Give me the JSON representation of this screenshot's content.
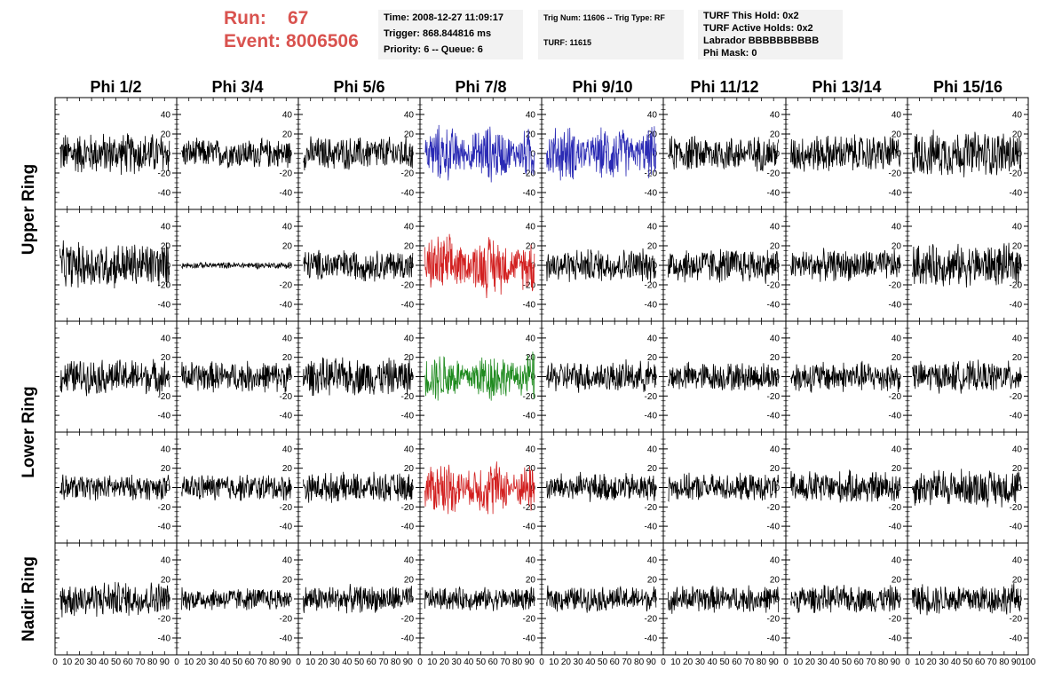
{
  "run_label": "Run:",
  "run_value": "67",
  "event_label": "Event:",
  "event_value": "8006506",
  "info_time": "Time: 2008-12-27 11:09:17",
  "info_trigger": "Trigger: 868.844816 ms",
  "info_priority": "Priority: 6 -- Queue: 6",
  "info_trignum": "Trig Num: 11606 -- Trig Type: RF",
  "info_turf": "TURF: 11615",
  "info_turf_hold": "TURF This Hold: 0x2",
  "info_turf_active": "TURF Active Holds: 0x2",
  "info_labrador": "Labrador BBBBBBBBBB",
  "info_phimask": "Phi Mask: 0",
  "colors": {
    "accent_red": "#d9534f",
    "trace_default": "#000000",
    "trace_blue": "#2a2ab4",
    "trace_red": "#d22020",
    "trace_green": "#1e8a1e"
  },
  "chart_data": {
    "type": "line",
    "columns": [
      "Phi 1/2",
      "Phi 3/4",
      "Phi 5/6",
      "Phi 7/8",
      "Phi 9/10",
      "Phi 11/12",
      "Phi 13/14",
      "Phi 15/16"
    ],
    "ring_labels": [
      "Upper Ring",
      "Lower Ring",
      "Nadir Ring"
    ],
    "xlim": [
      0,
      100
    ],
    "ylim": [
      -50,
      50
    ],
    "yticks": [
      -40,
      -20,
      0,
      20,
      40
    ],
    "xticks": [
      0,
      10,
      20,
      30,
      40,
      50,
      60,
      70,
      80,
      90,
      100
    ],
    "xtick_labels": [
      "0",
      "10",
      "20",
      "30",
      "40",
      "50",
      "60",
      "70",
      "80",
      "90",
      "100"
    ],
    "panels": [
      [
        {
          "amp": 20,
          "color": "#000000"
        },
        {
          "amp": 14,
          "color": "#000000"
        },
        {
          "amp": 16,
          "color": "#000000"
        },
        {
          "amp": 24,
          "color": "#2a2ab4"
        },
        {
          "amp": 24,
          "color": "#2a2ab4"
        },
        {
          "amp": 17,
          "color": "#000000"
        },
        {
          "amp": 18,
          "color": "#000000"
        },
        {
          "amp": 22,
          "color": "#000000"
        }
      ],
      [
        {
          "amp": 22,
          "color": "#000000"
        },
        {
          "amp": 3,
          "color": "#000000"
        },
        {
          "amp": 15,
          "color": "#000000"
        },
        {
          "amp": 26,
          "color": "#d22020"
        },
        {
          "amp": 16,
          "color": "#000000"
        },
        {
          "amp": 17,
          "color": "#000000"
        },
        {
          "amp": 15,
          "color": "#000000"
        },
        {
          "amp": 20,
          "color": "#000000"
        }
      ],
      [
        {
          "amp": 17,
          "color": "#000000"
        },
        {
          "amp": 15,
          "color": "#000000"
        },
        {
          "amp": 18,
          "color": "#000000"
        },
        {
          "amp": 22,
          "color": "#1e8a1e"
        },
        {
          "amp": 15,
          "color": "#000000"
        },
        {
          "amp": 14,
          "color": "#000000"
        },
        {
          "amp": 15,
          "color": "#000000"
        },
        {
          "amp": 15,
          "color": "#000000"
        }
      ],
      [
        {
          "amp": 12,
          "color": "#000000"
        },
        {
          "amp": 13,
          "color": "#000000"
        },
        {
          "amp": 14,
          "color": "#000000"
        },
        {
          "amp": 24,
          "color": "#d22020"
        },
        {
          "amp": 14,
          "color": "#000000"
        },
        {
          "amp": 13,
          "color": "#000000"
        },
        {
          "amp": 16,
          "color": "#000000"
        },
        {
          "amp": 18,
          "color": "#000000"
        }
      ],
      [
        {
          "amp": 17,
          "color": "#000000"
        },
        {
          "amp": 11,
          "color": "#000000"
        },
        {
          "amp": 13,
          "color": "#000000"
        },
        {
          "amp": 11,
          "color": "#000000"
        },
        {
          "amp": 12,
          "color": "#000000"
        },
        {
          "amp": 13,
          "color": "#000000"
        },
        {
          "amp": 13,
          "color": "#000000"
        },
        {
          "amp": 15,
          "color": "#000000"
        }
      ]
    ]
  }
}
